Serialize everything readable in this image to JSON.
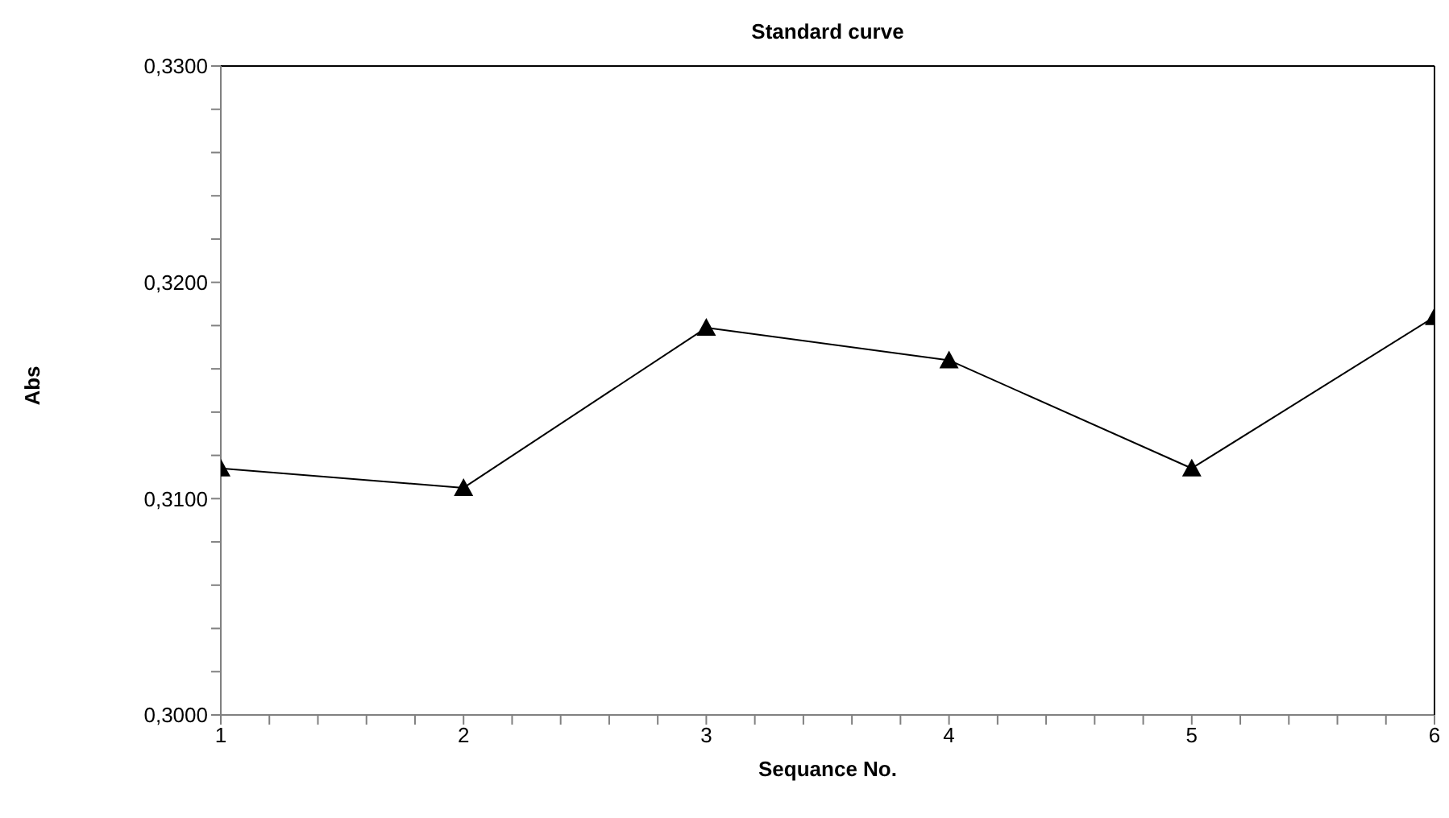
{
  "chart_data": {
    "type": "line",
    "title": "Standard curve",
    "xlabel": "Sequance No.",
    "ylabel": "Abs",
    "x": [
      1,
      2,
      3,
      4,
      5,
      6
    ],
    "series": [
      {
        "color": "#000000",
        "values": [
          0.3114,
          0.3105,
          0.3179,
          0.3164,
          0.3114,
          0.3184
        ]
      }
    ],
    "xlim": [
      1,
      6
    ],
    "xticks": [
      1,
      {
        "value": 1.2,
        "label": null
      },
      {
        "value": 1.4,
        "label": null
      },
      {
        "value": 1.6,
        "label": null
      },
      {
        "value": 1.8,
        "label": null
      },
      2,
      {
        "value": 2.2,
        "label": null
      },
      {
        "value": 2.4,
        "label": null
      },
      {
        "value": 2.6,
        "label": null
      },
      {
        "value": 2.8,
        "label": null
      },
      3,
      {
        "value": 3.2,
        "label": null
      },
      {
        "value": 3.4,
        "label": null
      },
      {
        "value": 3.6,
        "label": null
      },
      {
        "value": 3.8,
        "label": null
      },
      4,
      {
        "value": 4.2,
        "label": null
      },
      {
        "value": 4.4,
        "label": null
      },
      {
        "value": 4.6,
        "label": null
      },
      {
        "value": 4.8,
        "label": null
      },
      5,
      {
        "value": 5.2,
        "label": null
      },
      {
        "value": 5.4,
        "label": null
      },
      {
        "value": 5.6,
        "label": null
      },
      {
        "value": 5.8,
        "label": null
      },
      6
    ],
    "ylim": [
      0.3,
      0.33
    ],
    "yticks": [
      {
        "value": 0.3,
        "label": "0,3000"
      },
      {
        "value": 0.302,
        "label": null
      },
      {
        "value": 0.304,
        "label": null
      },
      {
        "value": 0.306,
        "label": null
      },
      {
        "value": 0.308,
        "label": null
      },
      {
        "value": 0.31,
        "label": "0,3100"
      },
      {
        "value": 0.312,
        "label": null
      },
      {
        "value": 0.314,
        "label": null
      },
      {
        "value": 0.316,
        "label": null
      },
      {
        "value": 0.318,
        "label": null
      },
      {
        "value": 0.32,
        "label": "0,3200"
      },
      {
        "value": 0.322,
        "label": null
      },
      {
        "value": 0.324,
        "label": null
      },
      {
        "value": 0.326,
        "label": null
      },
      {
        "value": 0.328,
        "label": null
      },
      {
        "value": 0.33,
        "label": "0,3300"
      }
    ],
    "grid": false,
    "legend": false,
    "marker": "triangle",
    "line_style": "solid"
  }
}
